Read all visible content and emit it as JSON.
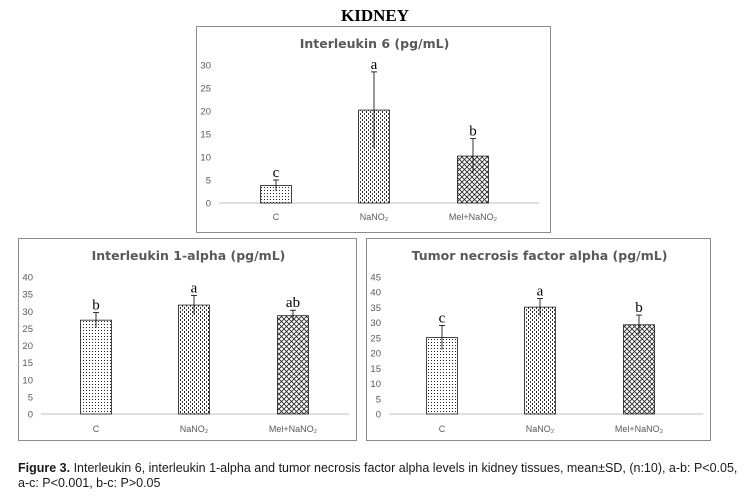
{
  "figure_title": "KIDNEY",
  "caption": {
    "label": "Figure 3.",
    "text": "Interleukin 6, interleukin 1-alpha and tumor necrosis factor alpha levels in kidney tissues, mean±SD, (n:10), a-b: P<0.05, a-c: P<0.001, b-c: P>0.05"
  },
  "colors": {
    "axis": "#bfbfbf",
    "bar_stroke": "#1a1a1a",
    "border": "#8c8c8c",
    "text": "#595959"
  },
  "chart_data": [
    {
      "type": "bar",
      "title": "Interleukin 6 (pg/mL)",
      "categories": [
        "C",
        "NaNO₂",
        "Mel+NaNO₂"
      ],
      "values": [
        3.8,
        20.2,
        10.2
      ],
      "errors": [
        1.2,
        8.3,
        3.8
      ],
      "significance_labels": [
        "c",
        "a",
        "b"
      ],
      "patterns": [
        "dots",
        "vlines",
        "cross"
      ],
      "ylim": [
        0,
        30
      ],
      "yticks": [
        0,
        5,
        10,
        15,
        20,
        25,
        30
      ],
      "grid": false,
      "legend": "none"
    },
    {
      "type": "bar",
      "title": "Interleukin 1-alpha (pg/mL)",
      "categories": [
        "C",
        "NaNO₂",
        "Mel+NaNO₂"
      ],
      "values": [
        27.4,
        31.8,
        28.7
      ],
      "errors": [
        2.2,
        2.8,
        1.6
      ],
      "significance_labels": [
        "b",
        "a",
        "ab"
      ],
      "patterns": [
        "dots",
        "vlines",
        "cross"
      ],
      "ylim": [
        0,
        40
      ],
      "yticks": [
        0,
        5,
        10,
        15,
        20,
        25,
        30,
        35,
        40
      ],
      "grid": false,
      "legend": "none"
    },
    {
      "type": "bar",
      "title": "Tumor necrosis factor alpha (pg/mL)",
      "categories": [
        "C",
        "NaNO₂",
        "Mel+NaNO₂"
      ],
      "values": [
        25.1,
        35.1,
        29.3
      ],
      "errors": [
        4.0,
        2.8,
        3.2
      ],
      "significance_labels": [
        "c",
        "a",
        "b"
      ],
      "patterns": [
        "dots",
        "vlines",
        "cross"
      ],
      "ylim": [
        0,
        45
      ],
      "yticks": [
        0,
        5,
        10,
        15,
        20,
        25,
        30,
        35,
        40,
        45
      ],
      "grid": false,
      "legend": "none"
    }
  ]
}
